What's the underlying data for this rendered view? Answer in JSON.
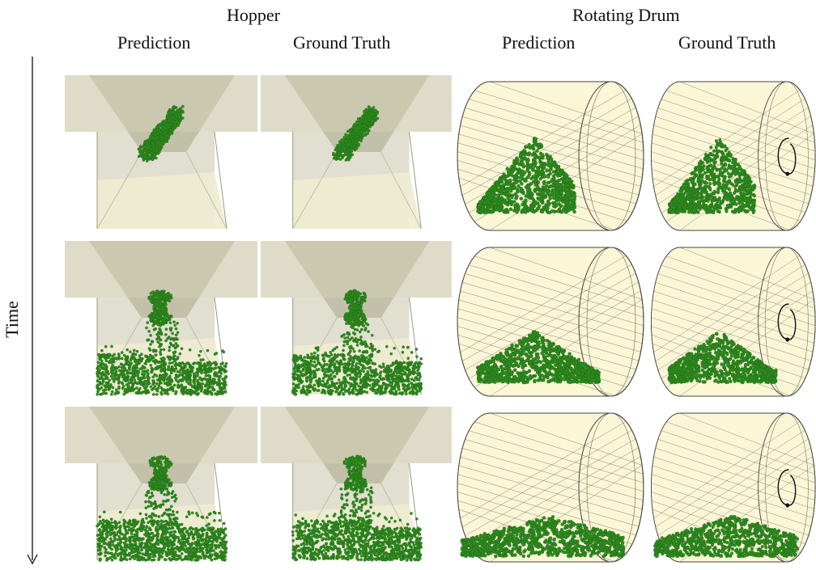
{
  "header": {
    "groups": [
      "Hopper",
      "Rotating Drum"
    ],
    "columns": [
      "Prediction",
      "Ground Truth",
      "Prediction",
      "Ground Truth"
    ]
  },
  "axis": {
    "label": "Time"
  },
  "colors": {
    "particles": "#2e8b1f",
    "particles_dark": "#1f6a14",
    "hopper_wall": "#c8c5a8",
    "hopper_dark": "#a9a588",
    "hopper_floor": "#eeecd2",
    "drum_fill": "#fbf6d6",
    "drum_lines": "#555555"
  },
  "figure": {
    "rows": 3,
    "hopper": {
      "upper_mass": [
        1.0,
        0.55,
        0.45
      ],
      "fallen_fraction": [
        0.0,
        0.65,
        0.75
      ]
    },
    "drum": {
      "pile_fraction": [
        0.55,
        0.35,
        0.25
      ]
    }
  }
}
